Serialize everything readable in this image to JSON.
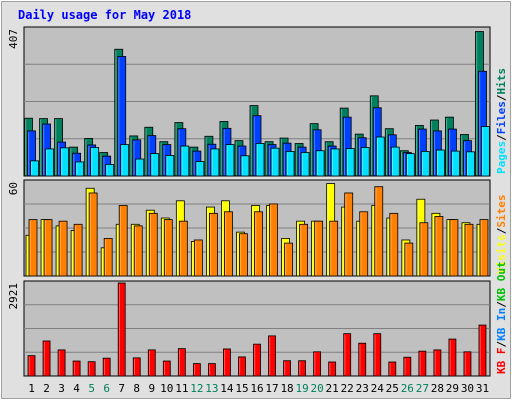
{
  "title": "Daily usage for May 2018",
  "colors": {
    "background": "#e0e0e0",
    "panel": "#c0c0c0",
    "title": "#0000ff",
    "hits": "#00805c",
    "files": "#0040ff",
    "pages": "#00e0ff",
    "visits": "#ffff00",
    "sites": "#ff8000",
    "kbytes": "#ff0000",
    "kbin": "#0080ff",
    "kbout": "#00c000",
    "weekend_label": "#00805c",
    "grid": "#808080"
  },
  "chart_data": {
    "type": "bar",
    "title": "Daily usage for May 2018",
    "categories": [
      "1",
      "2",
      "3",
      "4",
      "5",
      "6",
      "7",
      "8",
      "9",
      "10",
      "11",
      "12",
      "13",
      "14",
      "15",
      "16",
      "17",
      "18",
      "19",
      "20",
      "21",
      "22",
      "23",
      "24",
      "25",
      "26",
      "27",
      "28",
      "29",
      "30",
      "31"
    ],
    "weekend_days": [
      "5",
      "6",
      "12",
      "13",
      "19",
      "20",
      "26",
      "27"
    ],
    "panels": [
      {
        "name": "usage",
        "y_max_label": "407",
        "ylim": [
          0,
          407
        ],
        "legend": [
          {
            "text": "Pages",
            "color": "#00e0ff"
          },
          {
            "text": "Files",
            "color": "#0040ff"
          },
          {
            "text": "Hits",
            "color": "#00805c"
          }
        ],
        "series": [
          {
            "name": "Hits",
            "values": [
              160,
              159,
              159,
              80,
              104,
              65,
              351,
              111,
              135,
              95,
              148,
              80,
              110,
              151,
              98,
              195,
              95,
              105,
              90,
              145,
              95,
              188,
              116,
              222,
              131,
              70,
              140,
              155,
              163,
              115,
              400
            ]
          },
          {
            "name": "Files",
            "values": [
              125,
              144,
              94,
              63,
              86,
              55,
              331,
              100,
              112,
              87,
              131,
              69,
              88,
              132,
              83,
              167,
              87,
              91,
              80,
              128,
              83,
              163,
              106,
              189,
              114,
              65,
              130,
              125,
              130,
              98,
              290
            ]
          },
          {
            "name": "Pages",
            "values": [
              42,
              75,
              78,
              39,
              79,
              32,
              87,
              47,
              62,
              57,
              83,
              40,
              75,
              87,
              56,
              90,
              77,
              68,
              65,
              70,
              75,
              76,
              79,
              108,
              80,
              62,
              68,
              72,
              69,
              67,
              137
            ]
          }
        ]
      },
      {
        "name": "visits_sites",
        "y_max_label": "60",
        "ylim": [
          0,
          60
        ],
        "legend": [
          {
            "text": "Visits",
            "color": "#ffff00"
          },
          {
            "text": "Sites",
            "color": "#ff8000"
          }
        ],
        "series": [
          {
            "name": "Visits",
            "values": [
              26,
              36,
              32,
              29,
              56,
              18,
              33,
              33,
              42,
              37,
              48,
              22,
              44,
              48,
              28,
              45,
              45,
              24,
              35,
              35,
              59,
              44,
              35,
              45,
              37,
              23,
              49,
              40,
              36,
              34,
              33
            ]
          },
          {
            "name": "Sites",
            "values": [
              36,
              36,
              35,
              33,
              53,
              24,
              45,
              32,
              40,
              36,
              35,
              23,
              40,
              41,
              27,
              41,
              46,
              21,
              33,
              35,
              35,
              53,
              41,
              57,
              40,
              21,
              34,
              38,
              36,
              33,
              36
            ]
          }
        ]
      },
      {
        "name": "kbytes",
        "y_max_label": "2921",
        "ylim": [
          0,
          2921
        ],
        "legend": [
          {
            "text": "KB F",
            "color": "#ff0000"
          },
          {
            "text": "KB In",
            "color": "#0080ff"
          },
          {
            "text": "KB Out",
            "color": "#00c000"
          }
        ],
        "series": [
          {
            "name": "KB F",
            "values": [
              640,
              1100,
              820,
              470,
              450,
              560,
              2921,
              570,
              820,
              470,
              860,
              390,
              390,
              850,
              600,
              1000,
              1260,
              480,
              480,
              760,
              440,
              1330,
              1030,
              1330,
              440,
              590,
              780,
              820,
              1160,
              760,
              1600
            ]
          }
        ]
      }
    ]
  }
}
